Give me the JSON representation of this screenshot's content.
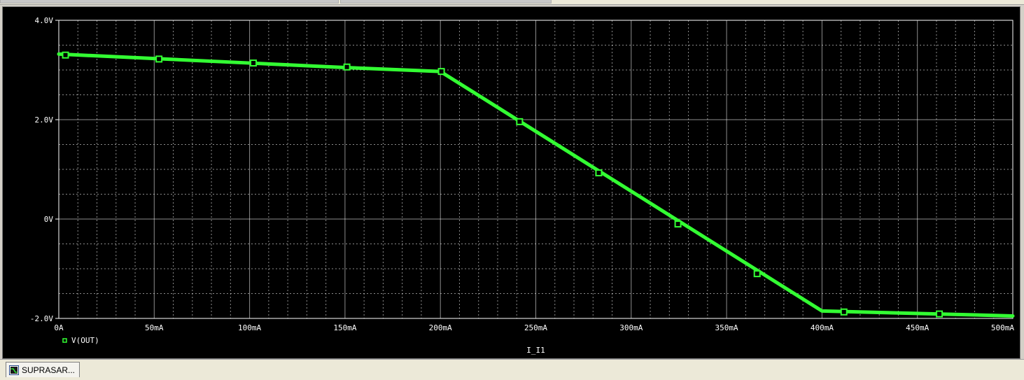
{
  "window": {
    "tab_label": "SUPRASAR..."
  },
  "colors": {
    "background": "#000000",
    "grid": "#ffffff",
    "trace": "#33ff33",
    "axis_text": "#ffffff"
  },
  "chart_data": {
    "type": "line",
    "title": "",
    "xlabel": "I_I1",
    "ylabel": "",
    "xlim": [
      0,
      500
    ],
    "ylim": [
      -2.0,
      4.0
    ],
    "x_ticks": [
      {
        "value": 0,
        "label": "0A"
      },
      {
        "value": 50,
        "label": "50mA"
      },
      {
        "value": 100,
        "label": "100mA"
      },
      {
        "value": 150,
        "label": "150mA"
      },
      {
        "value": 200,
        "label": "200mA"
      },
      {
        "value": 250,
        "label": "250mA"
      },
      {
        "value": 300,
        "label": "300mA"
      },
      {
        "value": 350,
        "label": "350mA"
      },
      {
        "value": 400,
        "label": "400mA"
      },
      {
        "value": 450,
        "label": "450mA"
      },
      {
        "value": 500,
        "label": "500mA"
      }
    ],
    "y_ticks": [
      {
        "value": 4.0,
        "label": "4.0V"
      },
      {
        "value": 2.0,
        "label": "2.0V"
      },
      {
        "value": 0,
        "label": "0V"
      },
      {
        "value": -2.0,
        "label": "-2.0V"
      }
    ],
    "grid": true,
    "legend_position": "bottom-left",
    "series": [
      {
        "name": "V(OUT)",
        "x": [
          0,
          50,
          100,
          150,
          200,
          400,
          500
        ],
        "y": [
          3.32,
          3.23,
          3.14,
          3.05,
          2.97,
          -1.85,
          -1.95
        ],
        "markers_x": [
          3.5,
          52.5,
          102,
          151,
          200.5,
          241.5,
          283,
          324.5,
          366,
          411.5,
          461.5
        ],
        "markers_y": [
          3.3,
          3.22,
          3.14,
          3.06,
          2.97,
          1.96,
          0.93,
          -0.1,
          -1.1,
          -1.87,
          -1.91
        ]
      }
    ]
  }
}
